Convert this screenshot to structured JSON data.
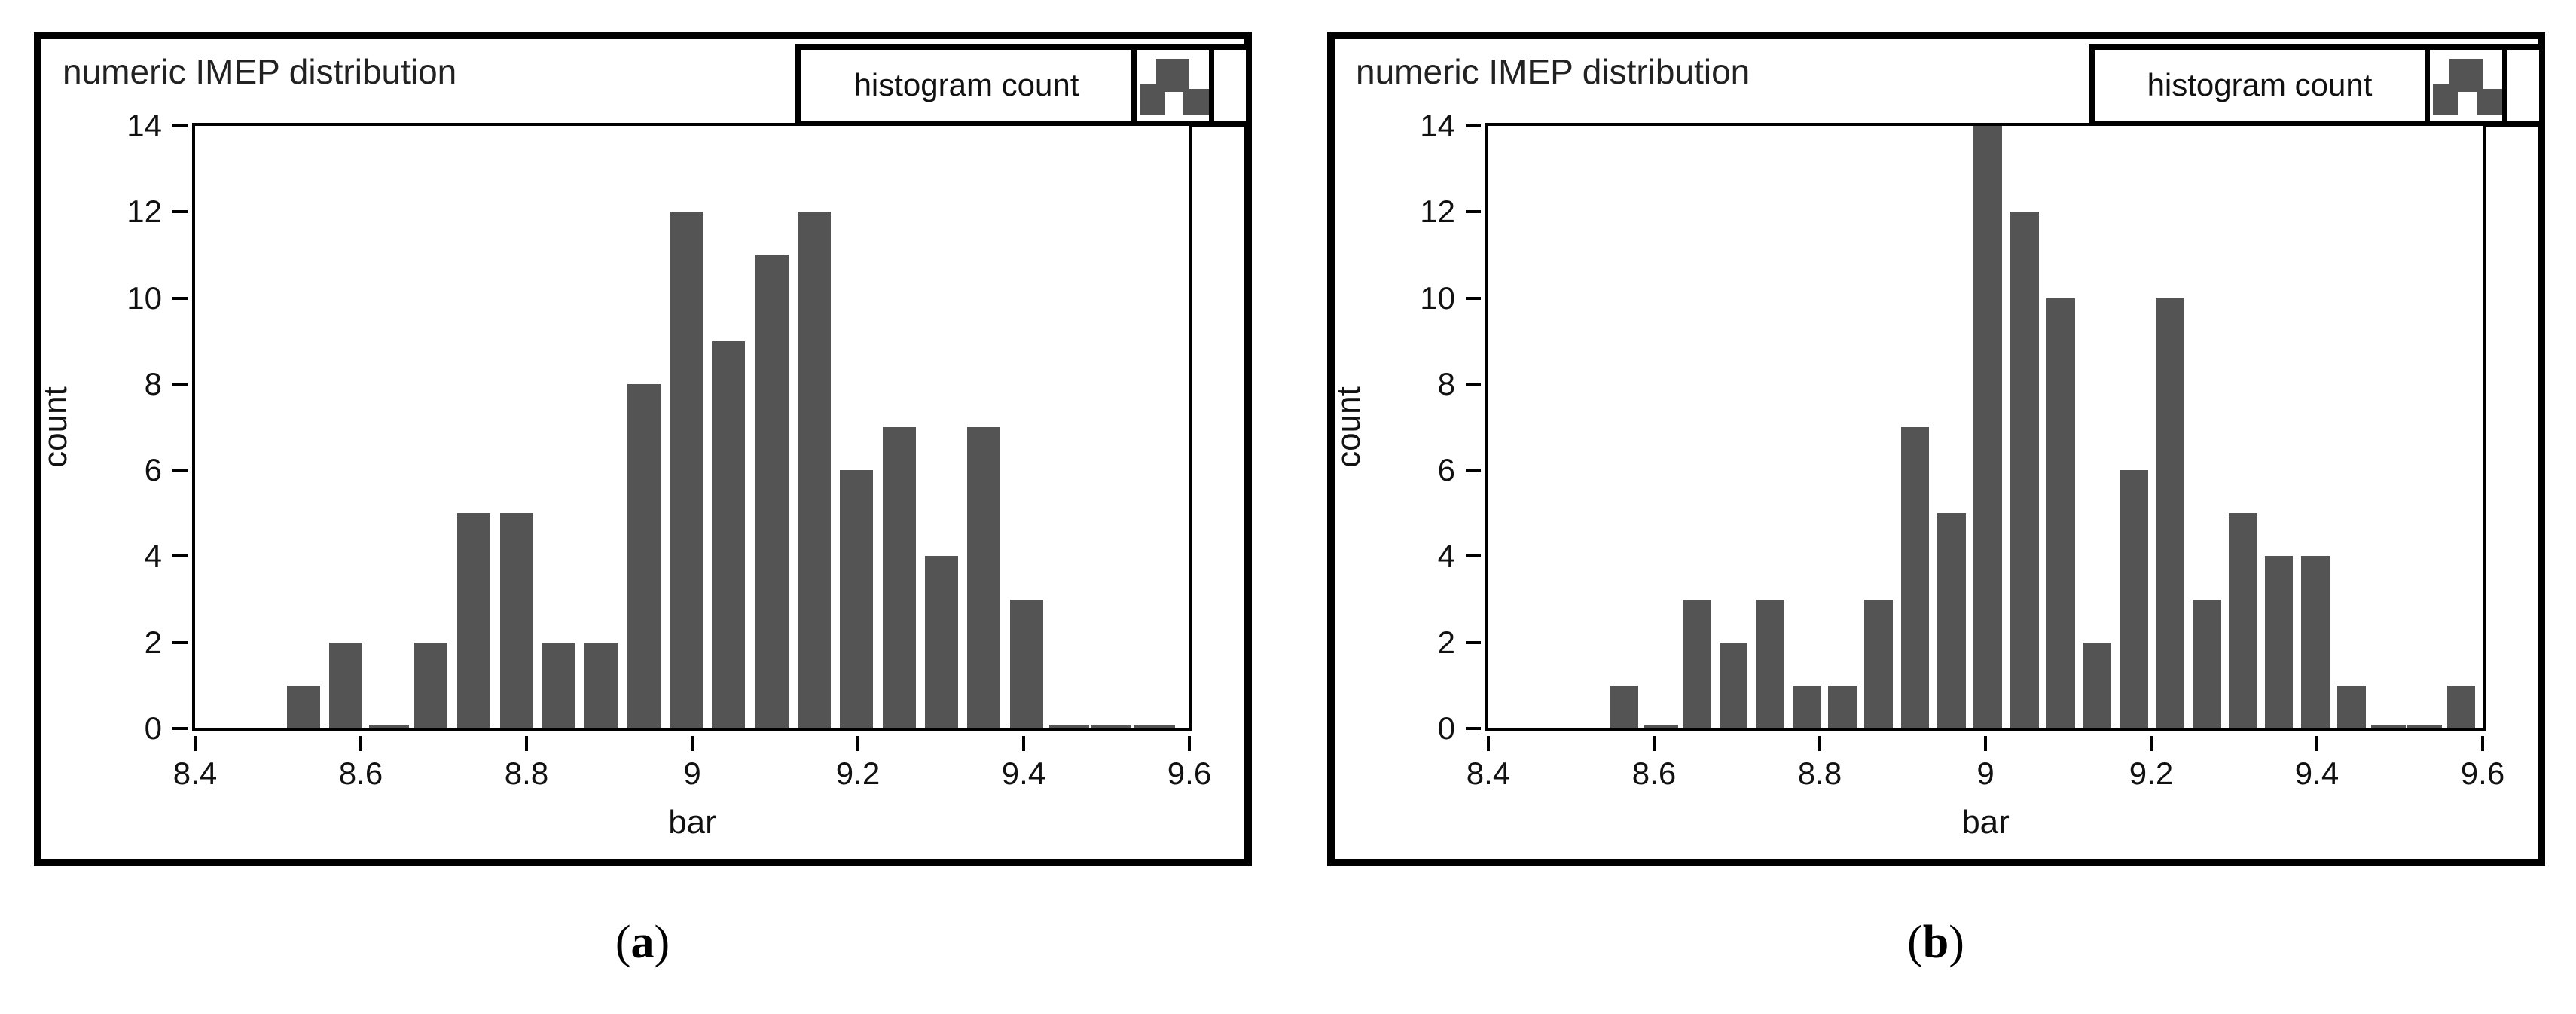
{
  "figure": {
    "captions": [
      {
        "pre": "(",
        "label": "a",
        "post": ")"
      },
      {
        "pre": "(",
        "label": "b",
        "post": ")"
      }
    ]
  },
  "colors": {
    "bar_fill": "#545454",
    "frame": "#000000",
    "text": "#1a1a1a",
    "background": "#ffffff"
  },
  "chart_data": [
    {
      "type": "bar",
      "title": "numeric IMEP distribution",
      "legend": {
        "label": "histogram count",
        "icon": "mini-histogram-icon",
        "position": "top-right"
      },
      "xlabel": "bar",
      "ylabel": "count",
      "xlim": [
        8.4,
        9.6
      ],
      "ylim": [
        0,
        14
      ],
      "xticks": [
        8.4,
        8.6,
        8.8,
        9,
        9.2,
        9.4,
        9.6
      ],
      "xtick_labels": [
        "8.4",
        "8.6",
        "8.8",
        "9",
        "9.2",
        "9.4",
        "9.6"
      ],
      "yticks": [
        0,
        2,
        4,
        6,
        8,
        10,
        12,
        14
      ],
      "grid": false,
      "bins": {
        "bin_width": 0.0513,
        "centers": [
          8.531,
          8.582,
          8.634,
          8.685,
          8.736,
          8.788,
          8.839,
          8.89,
          8.942,
          8.993,
          9.044,
          9.096,
          9.147,
          9.198,
          9.25,
          9.301,
          9.352,
          9.404,
          9.455,
          9.506,
          9.558
        ],
        "counts": [
          1,
          2,
          0,
          2,
          5,
          5,
          2,
          2,
          8,
          12,
          9,
          11,
          12,
          6,
          7,
          4,
          7,
          3,
          0,
          0,
          0
        ]
      },
      "zero_bins_drawn_as_stub": true
    },
    {
      "type": "bar",
      "title": "numeric IMEP distribution",
      "legend": {
        "label": "histogram count",
        "icon": "mini-histogram-icon",
        "position": "top-right"
      },
      "xlabel": "bar",
      "ylabel": "count",
      "xlim": [
        8.4,
        9.6
      ],
      "ylim": [
        0,
        14
      ],
      "xticks": [
        8.4,
        8.6,
        8.8,
        9,
        9.2,
        9.4,
        9.6
      ],
      "xtick_labels": [
        "8.4",
        "8.6",
        "8.8",
        "9",
        "9.2",
        "9.4",
        "9.6"
      ],
      "yticks": [
        0,
        2,
        4,
        6,
        8,
        10,
        12,
        14
      ],
      "grid": false,
      "bins": {
        "bin_width": 0.0439,
        "centers": [
          8.564,
          8.608,
          8.652,
          8.696,
          8.74,
          8.784,
          8.827,
          8.871,
          8.915,
          8.959,
          9.003,
          9.047,
          9.091,
          9.135,
          9.179,
          9.223,
          9.267,
          9.311,
          9.354,
          9.398,
          9.442,
          9.486,
          9.53,
          9.574
        ],
        "counts": [
          1,
          0,
          3,
          2,
          3,
          1,
          1,
          3,
          7,
          5,
          14,
          12,
          10,
          2,
          6,
          10,
          3,
          5,
          4,
          4,
          1,
          0,
          0,
          1
        ]
      },
      "zero_bins_drawn_as_stub": true
    }
  ]
}
